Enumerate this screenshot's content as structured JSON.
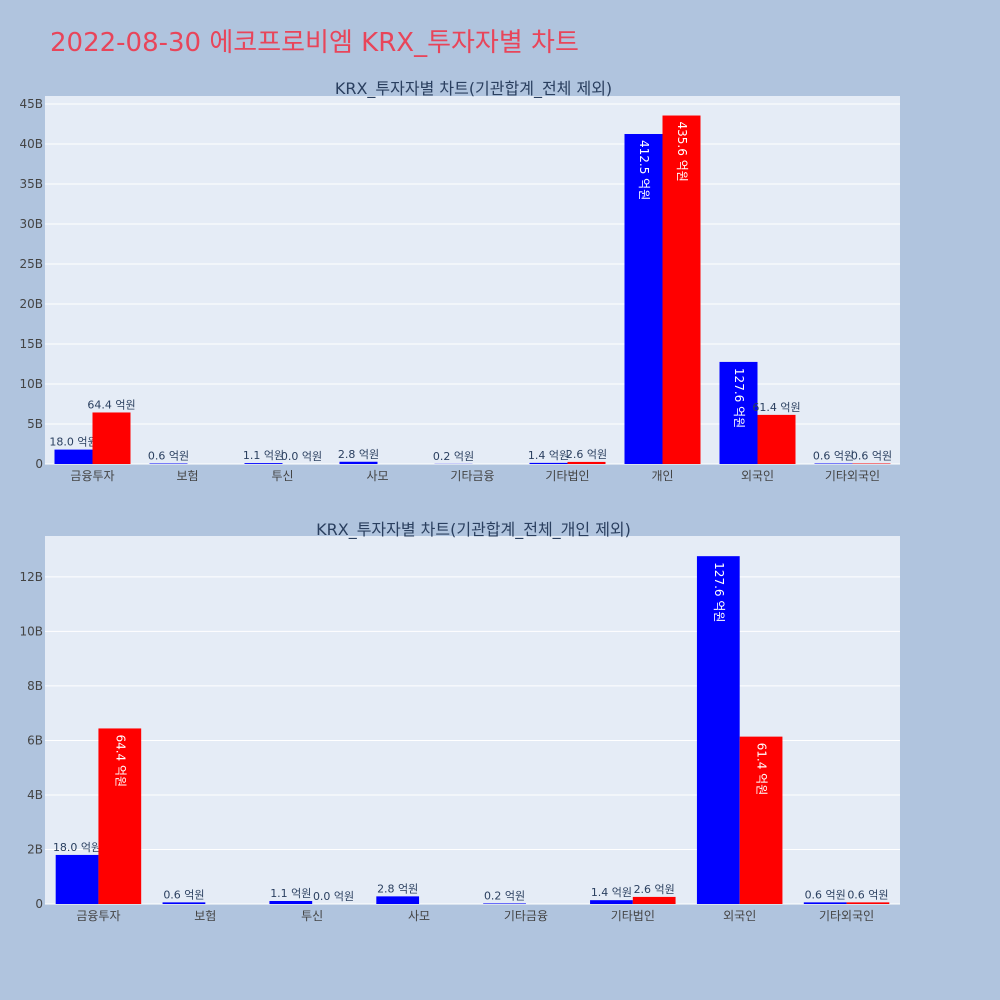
{
  "title": "2022-08-30 에코프로비엠 KRX_투자자별 차트",
  "colors": {
    "buy": "#0000ff",
    "sell": "#ff0000",
    "title": "#e8455a",
    "background": "#b0c4de",
    "plot": "#e5ecf6"
  },
  "chart_data": [
    {
      "type": "bar",
      "title": "KRX_투자자별 차트(기관합계_전체 제외)",
      "categories": [
        "금융투자",
        "보험",
        "투신",
        "사모",
        "기타금융",
        "기타법인",
        "개인",
        "외국인",
        "기타외국인"
      ],
      "series": [
        {
          "values": [
            1.8,
            0.06,
            0.11,
            0.28,
            0.02,
            0.14,
            41.25,
            12.76,
            0.06
          ],
          "labels": [
            "18.0 억원",
            "0.6 억원",
            "1.1 억원",
            "2.8 억원",
            "0.2 억원",
            "1.4 억원",
            "412.5 억원",
            "127.6 억원",
            "0.6 억원"
          ]
        },
        {
          "values": [
            6.44,
            0,
            0.0,
            0,
            0,
            0.26,
            43.56,
            6.14,
            0.06
          ],
          "labels": [
            "64.4 억원",
            "",
            "0.0 억원",
            "",
            "",
            "2.6 억원",
            "435.6 억원",
            "61.4 억원",
            "0.6 억원"
          ]
        }
      ],
      "ylim": [
        0,
        46
      ],
      "yticks": [
        0,
        5,
        10,
        15,
        20,
        25,
        30,
        35,
        40,
        45
      ],
      "ytick_labels": [
        "0",
        "5B",
        "10B",
        "15B",
        "20B",
        "25B",
        "30B",
        "35B",
        "40B",
        "45B"
      ],
      "grid": true
    },
    {
      "type": "bar",
      "title": "KRX_투자자별 차트(기관합계_전체_개인 제외)",
      "categories": [
        "금융투자",
        "보험",
        "투신",
        "사모",
        "기타금융",
        "기타법인",
        "외국인",
        "기타외국인"
      ],
      "series": [
        {
          "values": [
            1.8,
            0.06,
            0.11,
            0.28,
            0.02,
            0.14,
            12.76,
            0.06
          ],
          "labels": [
            "18.0 억원",
            "0.6 억원",
            "1.1 억원",
            "2.8 억원",
            "0.2 억원",
            "1.4 억원",
            "127.6 억원",
            "0.6 억원"
          ]
        },
        {
          "values": [
            6.44,
            0,
            0.0,
            0,
            0,
            0.26,
            6.14,
            0.06
          ],
          "labels": [
            "64.4 억원",
            "",
            "0.0 억원",
            "",
            "",
            "2.6 억원",
            "61.4 억원",
            "0.6 억원"
          ]
        }
      ],
      "ylim": [
        0,
        13.5
      ],
      "yticks": [
        0,
        2,
        4,
        6,
        8,
        10,
        12
      ],
      "ytick_labels": [
        "0",
        "2B",
        "4B",
        "6B",
        "8B",
        "10B",
        "12B"
      ],
      "grid": true
    }
  ]
}
